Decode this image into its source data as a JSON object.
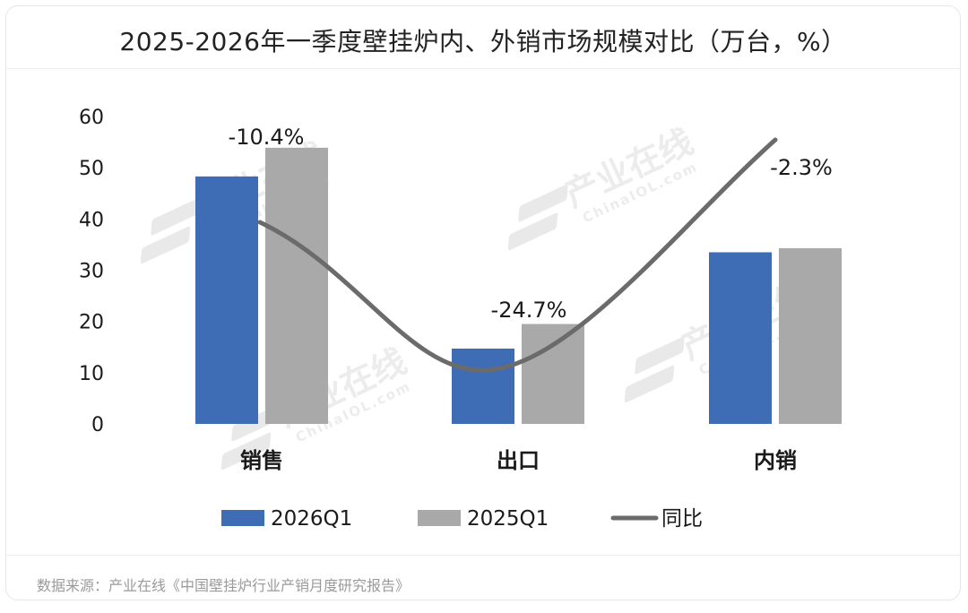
{
  "title": "2025-2026年一季度壁挂炉内、外销市场规模对比（万台，%）",
  "source": "数据来源：产业在线《中国壁挂炉行业产销月度研究报告》",
  "watermark": {
    "cn": "产业在线",
    "en": "ChinaIOL.com"
  },
  "colors": {
    "s2026": "#3e6db5",
    "s2025": "#a9a9a9",
    "yoy": "#6b6b6b"
  },
  "chart_data": {
    "type": "bar",
    "categories": [
      "销售",
      "出口",
      "内销"
    ],
    "series": [
      {
        "name": "2026Q1",
        "values": [
          48.3,
          14.7,
          33.5
        ]
      },
      {
        "name": "2025Q1",
        "values": [
          53.9,
          19.5,
          34.3
        ]
      }
    ],
    "line_series": {
      "name": "同比",
      "values": [
        -10.4,
        -24.7,
        -2.3
      ]
    },
    "data_labels": [
      "-10.4%",
      "-24.7%",
      "-2.3%"
    ],
    "yticks": [
      "0",
      "10",
      "20",
      "30",
      "40",
      "50",
      "60"
    ],
    "ylim": [
      0,
      60
    ],
    "grid": false,
    "legend": "bottom"
  }
}
